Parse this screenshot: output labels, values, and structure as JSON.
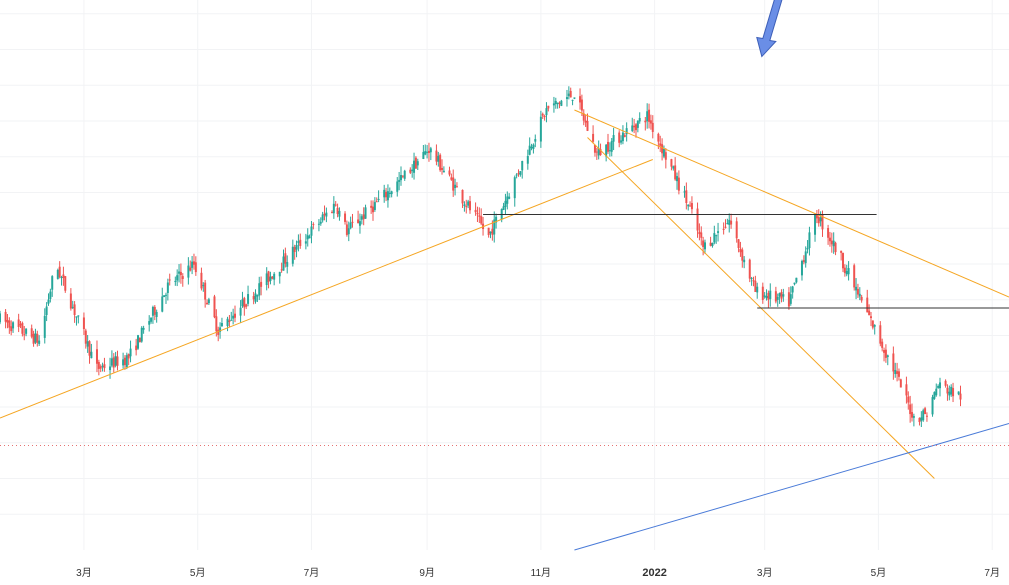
{
  "chart_data": {
    "type": "candlestick",
    "title": "",
    "xlabel": "",
    "ylabel": "",
    "grid": true,
    "legend": "none",
    "x_axis": {
      "start": "2021-01-15",
      "end": "2022-07-10",
      "ticks": [
        {
          "date": "2021-03-01",
          "label": "3月"
        },
        {
          "date": "2021-05-01",
          "label": "5月"
        },
        {
          "date": "2021-07-01",
          "label": "7月"
        },
        {
          "date": "2021-09-01",
          "label": "9月"
        },
        {
          "date": "2021-11-01",
          "label": "11月"
        },
        {
          "date": "2022-01-01",
          "label": "2022",
          "bold": true
        },
        {
          "date": "2022-03-01",
          "label": "3月"
        },
        {
          "date": "2022-05-01",
          "label": "5月"
        },
        {
          "date": "2022-07-01",
          "label": "7月"
        }
      ]
    },
    "y_range": [
      0,
      100
    ],
    "price_path": [
      {
        "date": "2021-01-15",
        "value": 42
      },
      {
        "date": "2021-02-05",
        "value": 38
      },
      {
        "date": "2021-02-14",
        "value": 52
      },
      {
        "date": "2021-03-08",
        "value": 33
      },
      {
        "date": "2021-03-25",
        "value": 35
      },
      {
        "date": "2021-04-15",
        "value": 48
      },
      {
        "date": "2021-04-29",
        "value": 52
      },
      {
        "date": "2021-05-12",
        "value": 40
      },
      {
        "date": "2021-06-15",
        "value": 52
      },
      {
        "date": "2021-07-14",
        "value": 63
      },
      {
        "date": "2021-07-20",
        "value": 58
      },
      {
        "date": "2021-08-17",
        "value": 67
      },
      {
        "date": "2021-09-02",
        "value": 73
      },
      {
        "date": "2021-09-20",
        "value": 64
      },
      {
        "date": "2021-10-04",
        "value": 57
      },
      {
        "date": "2021-11-04",
        "value": 80
      },
      {
        "date": "2021-11-19",
        "value": 83
      },
      {
        "date": "2021-12-01",
        "value": 72
      },
      {
        "date": "2021-12-28",
        "value": 79
      },
      {
        "date": "2022-01-20",
        "value": 62
      },
      {
        "date": "2022-01-27",
        "value": 55
      },
      {
        "date": "2022-02-10",
        "value": 60
      },
      {
        "date": "2022-02-24",
        "value": 47
      },
      {
        "date": "2022-03-14",
        "value": 45
      },
      {
        "date": "2022-03-29",
        "value": 61
      },
      {
        "date": "2022-04-11",
        "value": 53
      },
      {
        "date": "2022-05-09",
        "value": 33
      },
      {
        "date": "2022-05-20",
        "value": 24
      },
      {
        "date": "2022-05-27",
        "value": 25
      },
      {
        "date": "2022-06-02",
        "value": 30
      },
      {
        "date": "2022-06-14",
        "value": 28
      }
    ],
    "annotations": [
      {
        "kind": "trendline",
        "color": "#f5a623",
        "from": {
          "date": "2021-01-15",
          "value": 24
        },
        "to": {
          "date": "2021-12-31",
          "value": 71
        }
      },
      {
        "kind": "trendline",
        "color": "#f5a623",
        "from": {
          "date": "2021-11-19",
          "value": 80
        },
        "to": {
          "date": "2022-07-10",
          "value": 46
        }
      },
      {
        "kind": "trendline",
        "color": "#f5a623",
        "from": {
          "date": "2021-11-26",
          "value": 75
        },
        "to": {
          "date": "2022-05-31",
          "value": 13
        }
      },
      {
        "kind": "hline",
        "color": "#333333",
        "value": 61,
        "from": "2021-10-01",
        "to": "2022-04-30"
      },
      {
        "kind": "hline",
        "color": "#333333",
        "value": 44,
        "from": "2022-02-25",
        "to": "2022-07-10"
      },
      {
        "kind": "trendline",
        "color": "#4a7bd8",
        "from": {
          "date": "2021-11-19",
          "value": 0
        },
        "to": {
          "date": "2022-07-10",
          "value": 23
        }
      },
      {
        "kind": "dotted_hline",
        "color": "#e57373",
        "value": 19
      },
      {
        "kind": "arrow",
        "color": "#6a8ee6",
        "direction": "down",
        "at": {
          "date": "2022-02-28",
          "value": 91
        }
      }
    ]
  }
}
